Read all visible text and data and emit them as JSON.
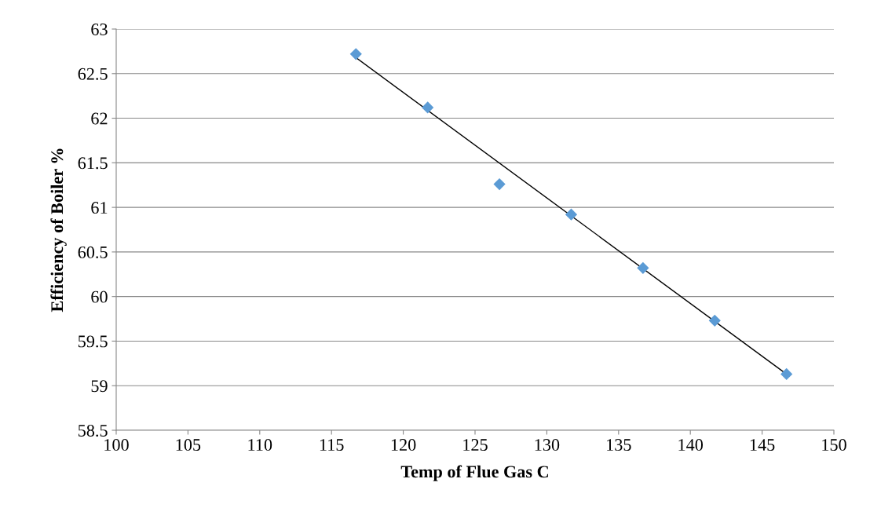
{
  "chart_data": {
    "type": "scatter",
    "xlabel": "Temp of Flue Gas C",
    "ylabel": "Efficiency of Boiler %",
    "xlim": [
      100,
      150
    ],
    "xticks": [
      100,
      105,
      110,
      115,
      120,
      125,
      130,
      135,
      140,
      145,
      150
    ],
    "ylim": [
      58.5,
      63
    ],
    "yticks": [
      58.5,
      59,
      59.5,
      60,
      60.5,
      61,
      61.5,
      62,
      62.5,
      63
    ],
    "grid": "y",
    "series": [
      {
        "marker": "diamond",
        "color": "#5b9bd5",
        "x": [
          116.7,
          121.7,
          126.7,
          131.7,
          136.7,
          141.7,
          146.7
        ],
        "values": [
          62.72,
          62.12,
          61.26,
          60.92,
          60.32,
          59.73,
          59.13
        ]
      },
      {
        "type": "line",
        "marker": "none",
        "color": "#000000",
        "x": [
          116.7,
          146.7
        ],
        "values": [
          62.68,
          59.13
        ]
      }
    ]
  }
}
